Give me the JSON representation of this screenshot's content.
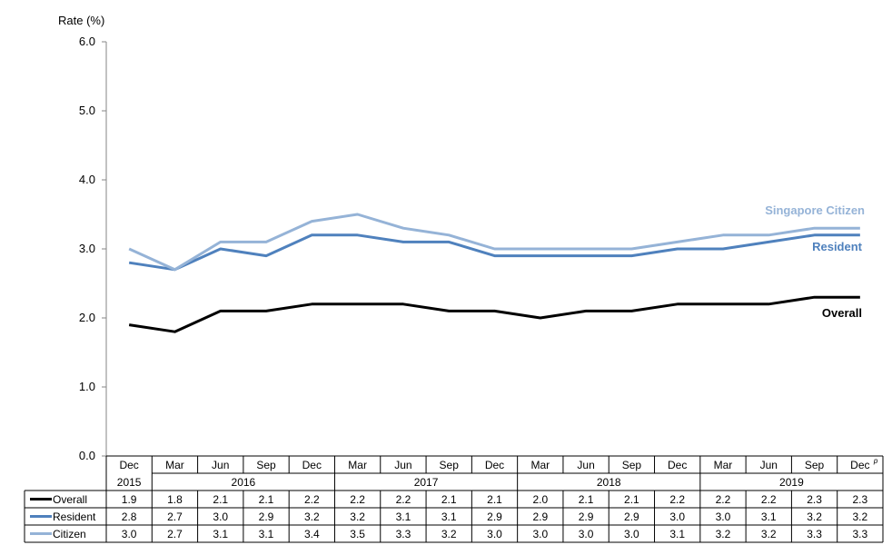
{
  "chart_data": {
    "type": "line",
    "ylabel": "Rate (%)",
    "ylim": [
      0,
      6
    ],
    "yticks": [
      "0.0",
      "1.0",
      "2.0",
      "3.0",
      "4.0",
      "5.0",
      "6.0"
    ],
    "grid": false,
    "periods": [
      "Dec",
      "Mar",
      "Jun",
      "Sep",
      "Dec",
      "Mar",
      "Jun",
      "Sep",
      "Dec",
      "Mar",
      "Jun",
      "Sep",
      "Dec",
      "Mar",
      "Jun",
      "Sep",
      "Dec"
    ],
    "years": [
      {
        "label": "2015",
        "start": 0,
        "end": 0
      },
      {
        "label": "2016",
        "start": 1,
        "end": 4
      },
      {
        "label": "2017",
        "start": 5,
        "end": 8
      },
      {
        "label": "2018",
        "start": 9,
        "end": 12
      },
      {
        "label": "2019",
        "start": 13,
        "end": 16
      }
    ],
    "footnote_mark": "p",
    "series": [
      {
        "name": "Overall",
        "table_name": "Overall",
        "color": "#000000",
        "values": [
          1.9,
          1.8,
          2.1,
          2.1,
          2.2,
          2.2,
          2.2,
          2.1,
          2.1,
          2.0,
          2.1,
          2.1,
          2.2,
          2.2,
          2.2,
          2.3,
          2.3
        ],
        "labels": [
          "1.9",
          "1.8",
          "2.1",
          "2.1",
          "2.2",
          "2.2",
          "2.2",
          "2.1",
          "2.1",
          "2.0",
          "2.1",
          "2.1",
          "2.2",
          "2.2",
          "2.2",
          "2.3",
          "2.3"
        ]
      },
      {
        "name": "Resident",
        "table_name": "Resident",
        "color": "#4f81bd",
        "values": [
          2.8,
          2.7,
          3.0,
          2.9,
          3.2,
          3.2,
          3.1,
          3.1,
          2.9,
          2.9,
          2.9,
          2.9,
          3.0,
          3.0,
          3.1,
          3.2,
          3.2
        ],
        "labels": [
          "2.8",
          "2.7",
          "3.0",
          "2.9",
          "3.2",
          "3.2",
          "3.1",
          "3.1",
          "2.9",
          "2.9",
          "2.9",
          "2.9",
          "3.0",
          "3.0",
          "3.1",
          "3.2",
          "3.2"
        ]
      },
      {
        "name": "Singapore Citizen",
        "table_name": "Citizen",
        "color": "#95b3d7",
        "values": [
          3.0,
          2.7,
          3.1,
          3.1,
          3.4,
          3.5,
          3.3,
          3.2,
          3.0,
          3.0,
          3.0,
          3.0,
          3.1,
          3.2,
          3.2,
          3.3,
          3.3
        ],
        "labels": [
          "3.0",
          "2.7",
          "3.1",
          "3.1",
          "3.4",
          "3.5",
          "3.3",
          "3.2",
          "3.0",
          "3.0",
          "3.0",
          "3.0",
          "3.1",
          "3.2",
          "3.2",
          "3.3",
          "3.3"
        ]
      }
    ]
  }
}
